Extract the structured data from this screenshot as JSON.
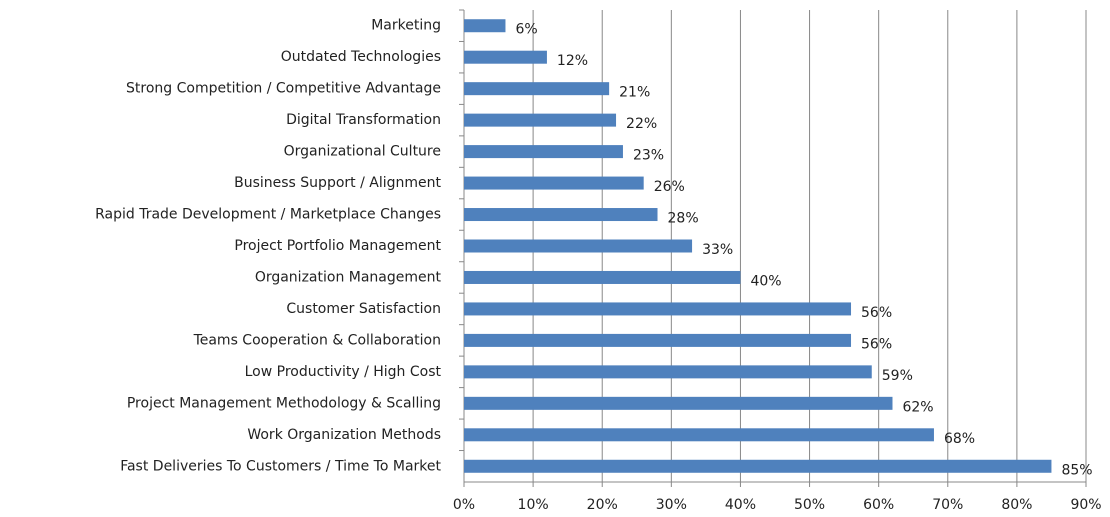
{
  "chart_data": {
    "type": "barh",
    "color": "#4f81bd",
    "grid": true,
    "categories": [
      "Marketing",
      "Outdated Technologies",
      "Strong Competition / Competitive Advantage",
      "Digital Transformation",
      "Organizational Culture",
      "Business Support / Alignment",
      "Rapid Trade Development / Marketplace Changes",
      "Project Portfolio Management",
      "Organization Management",
      "Customer Satisfaction",
      "Teams Cooperation & Collaboration",
      "Low Productivity / High Cost",
      "Project Management Methodology & Scalling",
      "Work Organization Methods",
      "Fast Deliveries To Customers / Time To Market"
    ],
    "values": [
      6,
      12,
      21,
      22,
      23,
      26,
      28,
      33,
      40,
      56,
      56,
      59,
      62,
      68,
      85
    ],
    "value_labels": [
      "6%",
      "12%",
      "21%",
      "22%",
      "23%",
      "26%",
      "28%",
      "33%",
      "40%",
      "56%",
      "56%",
      "59%",
      "62%",
      "68%",
      "85%"
    ],
    "xlim": [
      0,
      90
    ],
    "xticks": [
      {
        "value": 0,
        "label": "0%"
      },
      {
        "value": 10,
        "label": "10%"
      },
      {
        "value": 20,
        "label": "20%"
      },
      {
        "value": 30,
        "label": "30%"
      },
      {
        "value": 40,
        "label": "40%"
      },
      {
        "value": 50,
        "label": "50%"
      },
      {
        "value": 60,
        "label": "60%"
      },
      {
        "value": 70,
        "label": "70%"
      },
      {
        "value": 80,
        "label": "80%"
      },
      {
        "value": 90,
        "label": "90%"
      }
    ]
  }
}
